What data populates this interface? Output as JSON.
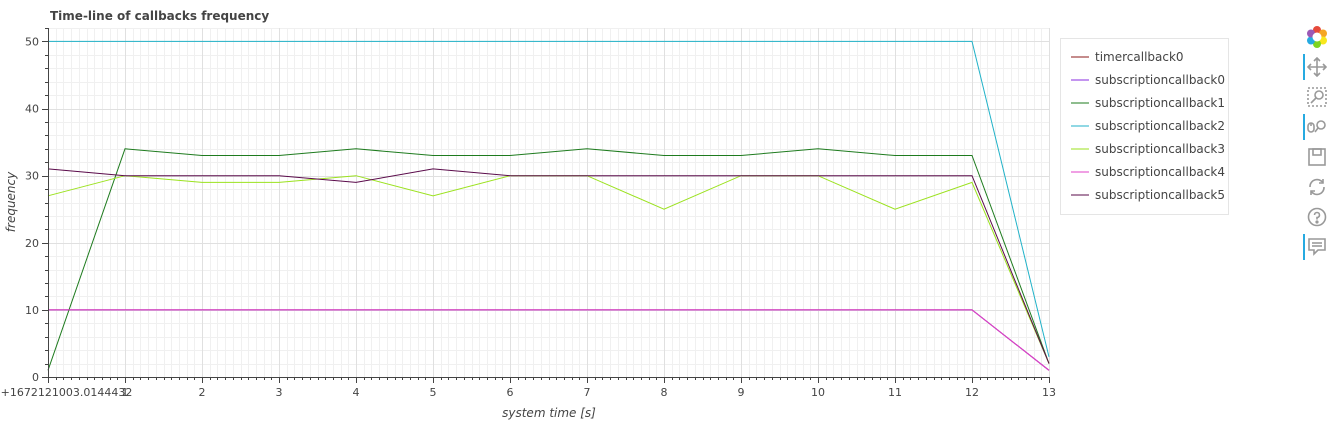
{
  "chart_data": {
    "type": "line",
    "title": "Time-line of callbacks frequency",
    "xlabel": "system time [s]",
    "ylabel": "frequency",
    "xlim": [
      0,
      13
    ],
    "ylim": [
      0,
      52
    ],
    "x_ticks": [
      {
        "value": 0,
        "label": "0+1672121003.0144432"
      },
      {
        "value": 1,
        "label": "1"
      },
      {
        "value": 2,
        "label": "2"
      },
      {
        "value": 3,
        "label": "3"
      },
      {
        "value": 4,
        "label": "4"
      },
      {
        "value": 5,
        "label": "5"
      },
      {
        "value": 6,
        "label": "6"
      },
      {
        "value": 7,
        "label": "7"
      },
      {
        "value": 8,
        "label": "8"
      },
      {
        "value": 9,
        "label": "9"
      },
      {
        "value": 10,
        "label": "10"
      },
      {
        "value": 11,
        "label": "11"
      },
      {
        "value": 12,
        "label": "12"
      },
      {
        "value": 13,
        "label": "13"
      }
    ],
    "y_ticks": [
      0,
      10,
      20,
      30,
      40,
      50
    ],
    "grid": true,
    "legend_position": "right",
    "x": [
      0,
      1,
      2,
      3,
      4,
      5,
      6,
      7,
      8,
      9,
      10,
      11,
      12,
      13
    ],
    "series": [
      {
        "name": "timercallback0",
        "color": "#8b1a1a",
        "values": [
          10,
          10,
          10,
          10,
          10,
          10,
          10,
          10,
          10,
          10,
          10,
          10,
          10,
          1
        ]
      },
      {
        "name": "subscriptioncallback0",
        "color": "#8a2be2",
        "values": [
          10,
          10,
          10,
          10,
          10,
          10,
          10,
          10,
          10,
          10,
          10,
          10,
          10,
          1
        ]
      },
      {
        "name": "subscriptioncallback1",
        "color": "#1e7b1e",
        "values": [
          1,
          34,
          33,
          33,
          34,
          33,
          33,
          34,
          33,
          33,
          34,
          33,
          33,
          2
        ]
      },
      {
        "name": "subscriptioncallback2",
        "color": "#20b2c8",
        "values": [
          50,
          50,
          50,
          50,
          50,
          50,
          50,
          50,
          50,
          50,
          50,
          50,
          50,
          3
        ]
      },
      {
        "name": "subscriptioncallback3",
        "color": "#9be21e",
        "values": [
          27,
          30,
          29,
          29,
          30,
          27,
          30,
          30,
          25,
          30,
          30,
          25,
          29,
          2
        ]
      },
      {
        "name": "subscriptioncallback4",
        "color": "#e040c8",
        "values": [
          10,
          10,
          10,
          10,
          10,
          10,
          10,
          10,
          10,
          10,
          10,
          10,
          10,
          1
        ]
      },
      {
        "name": "subscriptioncallback5",
        "color": "#5a0a4a",
        "values": [
          31,
          30,
          30,
          30,
          29,
          31,
          30,
          30,
          30,
          30,
          30,
          30,
          30,
          2
        ]
      }
    ]
  },
  "toolbar": {
    "tools": [
      {
        "icon": "bokeh-logo-icon",
        "active": false
      },
      {
        "icon": "pan-icon",
        "active": true
      },
      {
        "icon": "box-zoom-icon",
        "active": false
      },
      {
        "icon": "wheel-zoom-icon",
        "active": true
      },
      {
        "icon": "save-icon",
        "active": false
      },
      {
        "icon": "reset-icon",
        "active": false
      },
      {
        "icon": "help-icon",
        "active": false
      },
      {
        "icon": "hover-icon",
        "active": true
      }
    ]
  }
}
